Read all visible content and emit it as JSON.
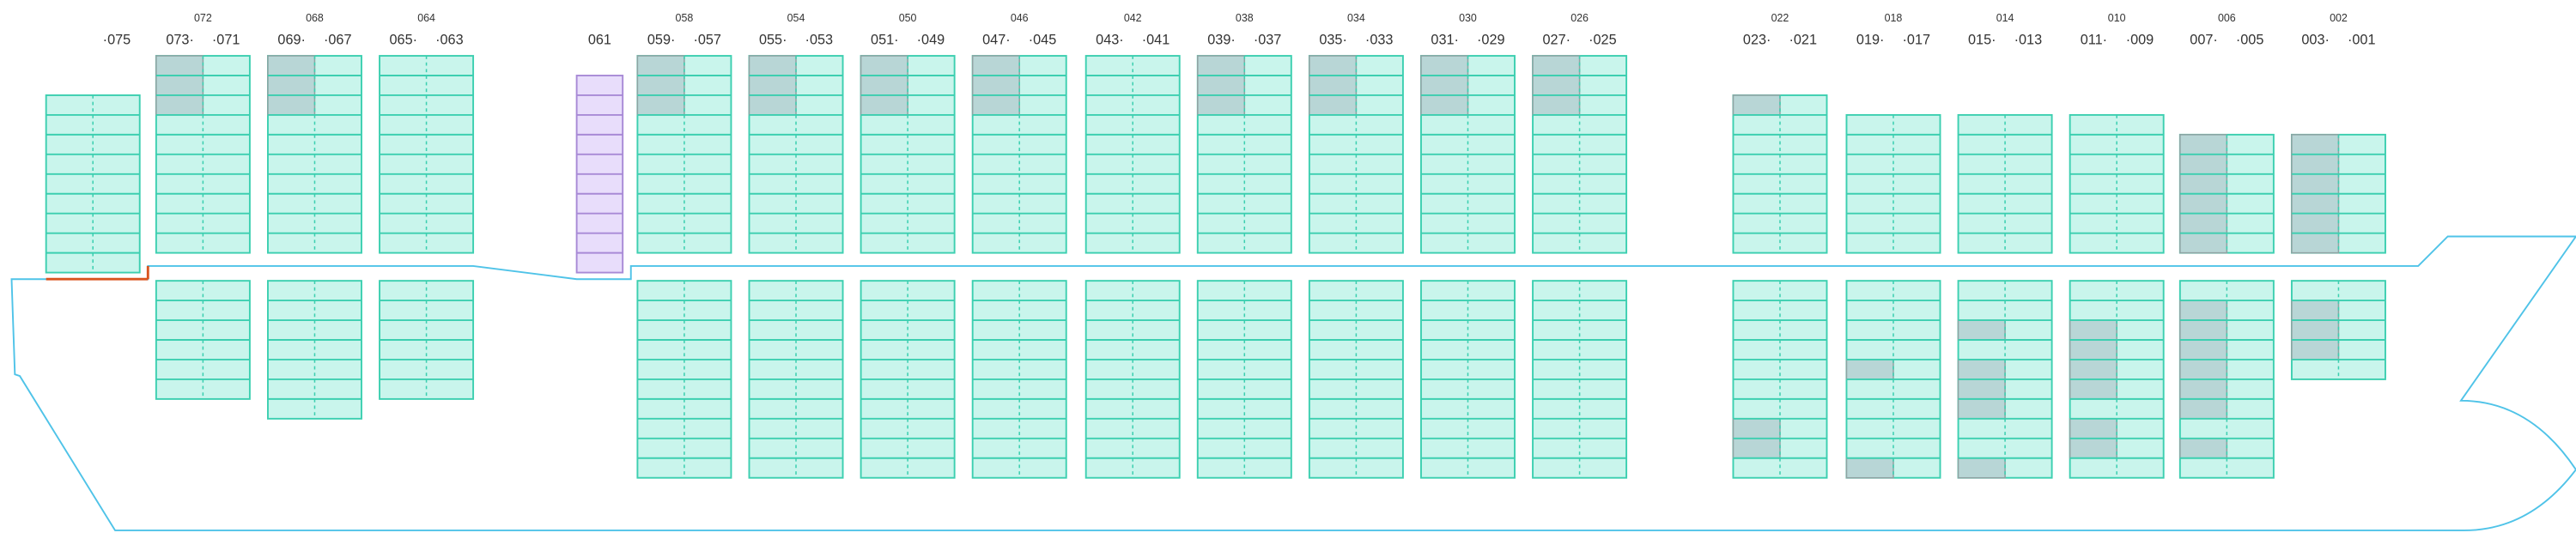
{
  "bays": [
    {
      "label": "·075"
    },
    {
      "left": "073·",
      "middle": "072",
      "right": "·071"
    },
    {
      "left": "069·",
      "middle": "068",
      "right": "·067"
    },
    {
      "left": "065·",
      "middle": "064",
      "right": "·063"
    },
    {
      "label": "061"
    },
    {
      "left": "059·",
      "middle": "058",
      "right": "·057"
    },
    {
      "left": "055·",
      "middle": "054",
      "right": "·053"
    },
    {
      "left": "051·",
      "middle": "050",
      "right": "·049"
    },
    {
      "left": "047·",
      "middle": "046",
      "right": "·045"
    },
    {
      "left": "043·",
      "middle": "042",
      "right": "·041"
    },
    {
      "left": "039·",
      "middle": "038",
      "right": "·037"
    },
    {
      "left": "035·",
      "middle": "034",
      "right": "·033"
    },
    {
      "left": "031·",
      "middle": "030",
      "right": "·029"
    },
    {
      "left": "027·",
      "middle": "026",
      "right": "·025"
    },
    {
      "left": "023·",
      "middle": "022",
      "right": "·021"
    },
    {
      "left": "019·",
      "middle": "018",
      "right": "·017"
    },
    {
      "left": "015·",
      "middle": "014",
      "right": "·013"
    },
    {
      "left": "011·",
      "middle": "010",
      "right": "·009"
    },
    {
      "left": "007·",
      "middle": "006",
      "right": "·005"
    },
    {
      "left": "003·",
      "middle": "002",
      "right": "·001"
    }
  ]
}
